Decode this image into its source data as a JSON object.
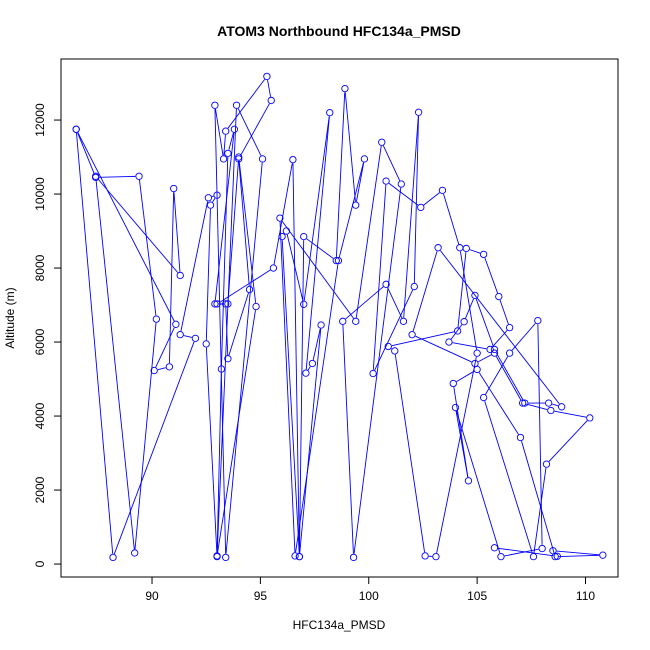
{
  "chart_data": {
    "type": "scatter",
    "title": "ATOM3 Northbound HFC134a_PMSD",
    "xlabel": "HFC134a_PMSD",
    "ylabel": "Altitude (m)",
    "xlim": [
      85.8,
      111.5
    ],
    "ylim": [
      -350,
      13650
    ],
    "x_ticks": [
      90,
      95,
      100,
      105,
      110
    ],
    "y_ticks": [
      0,
      2000,
      4000,
      6000,
      8000,
      10000,
      12000
    ],
    "grid": false,
    "legend": "none",
    "series_color": "#0000ff",
    "series": [
      {
        "mode": "lines+markers",
        "x": [
          86.5,
          87.4,
          89.4,
          90.2,
          89.2,
          87.4,
          91.3,
          91.0,
          90.8,
          90.1,
          91.1,
          86.5,
          88.2,
          92.0,
          91.3,
          92.6,
          93.0,
          92.7,
          92.5,
          93.0,
          93.2,
          93.5,
          93.8,
          92.9,
          93.5,
          94.0,
          94.8,
          93.0,
          93.9,
          95.1,
          93.4,
          92.9,
          93.3,
          93.4,
          95.3,
          95.5,
          94.0,
          94.5,
          93.5,
          93.4,
          93.0,
          95.6,
          96.5,
          96.8,
          96.0,
          96.2,
          97.0,
          98.2,
          97.1,
          97.4,
          97.8,
          96.8,
          97.0,
          98.5,
          98.9,
          99.4,
          99.8,
          98.6,
          96.6,
          95.9,
          99.4,
          100.6,
          101.5,
          99.3,
          98.8,
          100.8,
          101.6,
          102.3,
          102.1,
          100.2,
          100.8,
          102.4,
          103.4,
          104.2,
          105.0,
          103.1,
          102.6,
          101.2,
          100.9,
          104.1,
          104.5,
          105.3,
          106.0,
          106.5,
          105.6,
          103.7,
          104.4,
          104.9,
          105.8,
          107.2,
          108.3,
          108.9,
          103.2,
          102.0,
          104.9,
          105.8,
          107.1,
          108.4,
          110.2,
          108.2,
          107.6,
          105.3,
          106.5,
          107.8,
          108.0,
          106.1,
          104.0,
          104.6,
          103.9,
          105.0,
          107.0,
          108.6,
          110.8,
          108.5,
          108.7,
          105.8
        ],
        "y": [
          11750,
          10450,
          10480,
          6620,
          300,
          10480,
          7800,
          10150,
          5330,
          5230,
          6480,
          11750,
          180,
          6100,
          6200,
          9900,
          9970,
          9700,
          5950,
          200,
          5270,
          11100,
          11750,
          7030,
          7030,
          11000,
          6960,
          220,
          12400,
          10950,
          180,
          12400,
          10950,
          11700,
          13180,
          12530,
          10950,
          7420,
          5550,
          7030,
          7030,
          8000,
          10930,
          200,
          8850,
          9000,
          7020,
          12200,
          5160,
          5420,
          6460,
          200,
          8850,
          8200,
          12850,
          9700,
          10950,
          8200,
          220,
          9350,
          6560,
          11400,
          10270,
          180,
          6560,
          7560,
          6560,
          12210,
          7500,
          5150,
          10350,
          9640,
          10100,
          8550,
          5700,
          200,
          220,
          5760,
          5880,
          6300,
          8530,
          8370,
          7230,
          6390,
          5800,
          6000,
          6550,
          7260,
          5800,
          4350,
          4350,
          4250,
          8550,
          6200,
          5420,
          5700,
          4350,
          4150,
          3950,
          2700,
          200,
          4500,
          5700,
          6580,
          420,
          200,
          4230,
          2250,
          4880,
          5260,
          3420,
          200,
          240,
          360,
          210,
          440
        ]
      }
    ]
  }
}
